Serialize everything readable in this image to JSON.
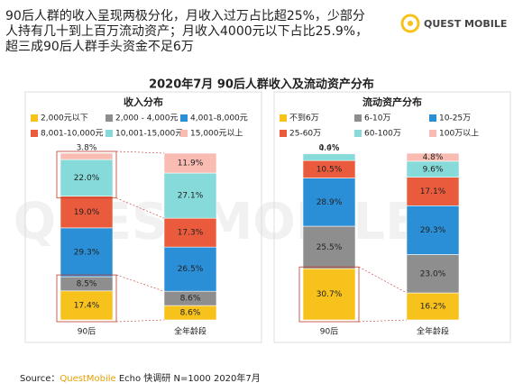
{
  "header": {
    "headline": [
      "90后人群的收入呈现两极分化，月收入过万占比超25%，少部分",
      "人持有几十到上百万流动资产；月收入4000元以下占比25.9%，",
      "超三成90后人群手头资金不足6万"
    ],
    "logo": "QUEST MOBILE",
    "watermark": "QUESTMOBILE"
  },
  "main_title": "2020年7月 90后人群收入及流动资产分布",
  "source": {
    "prefix": "Source：",
    "brand": "QuestMobile",
    "rest": " Echo 快调研 N=1000 2020年7月"
  },
  "chart_data": [
    {
      "type": "bar",
      "stacked": true,
      "title": "收入分布",
      "categories": [
        "90后",
        "全年龄段"
      ],
      "series": [
        {
          "name": "2,000元以下",
          "color": "#f7c21b",
          "values": [
            17.4,
            8.6
          ],
          "value_labels": [
            "17.4%",
            "8.6%"
          ]
        },
        {
          "name": "2,000 - 4,000元",
          "color": "#8e8e8e",
          "values": [
            8.5,
            8.6
          ],
          "value_labels": [
            "8.5%",
            "8.6%"
          ]
        },
        {
          "name": "4,001-8,000元",
          "color": "#2b8fd8",
          "values": [
            29.3,
            26.5
          ],
          "value_labels": [
            "29.3%",
            "26.5%"
          ]
        },
        {
          "name": "8,001-10,000元",
          "color": "#ea5a3c",
          "values": [
            19.0,
            17.3
          ],
          "value_labels": [
            "19.0%",
            "17.3%"
          ]
        },
        {
          "name": "10,001-15,000元",
          "color": "#86dada",
          "values": [
            22.0,
            27.1
          ],
          "value_labels": [
            "22.0%",
            "27.1%"
          ]
        },
        {
          "name": "15,000元以上",
          "color": "#f8bcb3",
          "values": [
            3.8,
            11.9
          ],
          "value_labels": [
            "3.8%",
            "11.9%"
          ]
        }
      ]
    },
    {
      "type": "bar",
      "stacked": true,
      "title": "流动资产分布",
      "categories": [
        "90后",
        "全年龄段"
      ],
      "series": [
        {
          "name": "不到6万",
          "color": "#f7c21b",
          "values": [
            30.7,
            16.2
          ],
          "value_labels": [
            "30.7%",
            "16.2%"
          ]
        },
        {
          "name": "6-10万",
          "color": "#8e8e8e",
          "values": [
            25.5,
            23.0
          ],
          "value_labels": [
            "25.5%",
            "23.0%"
          ]
        },
        {
          "name": "10-25万",
          "color": "#2b8fd8",
          "values": [
            28.9,
            29.3
          ],
          "value_labels": [
            "28.9%",
            "29.3%"
          ]
        },
        {
          "name": "25-60万",
          "color": "#ea5a3c",
          "values": [
            10.5,
            17.1
          ],
          "value_labels": [
            "10.5%",
            "17.1%"
          ]
        },
        {
          "name": "60-100万",
          "color": "#86dada",
          "values": [
            4.0,
            9.6
          ],
          "value_labels": [
            "4.0%",
            "9.6%"
          ]
        },
        {
          "name": "100万以上",
          "color": "#f8bcb3",
          "values": [
            0.4,
            4.8
          ],
          "value_labels": [
            "0.4%",
            "4.8%"
          ]
        }
      ]
    }
  ]
}
